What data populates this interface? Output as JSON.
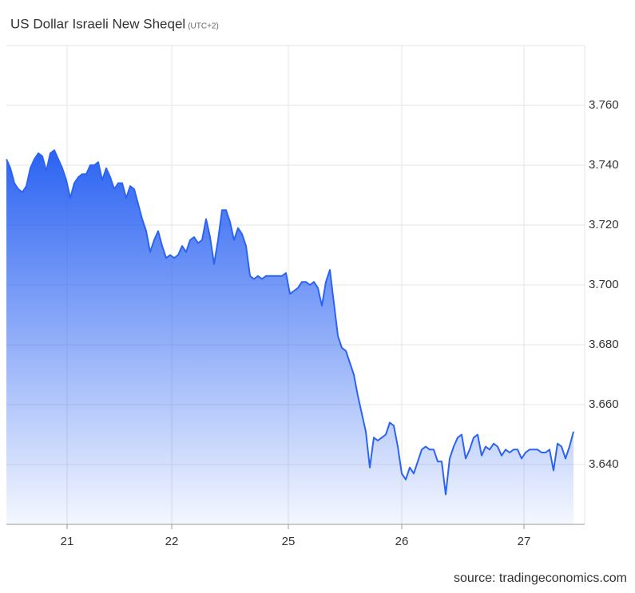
{
  "chart_data": {
    "type": "area",
    "title": "US Dollar Israeli New Sheqel",
    "subtitle": "(UTC+2)",
    "source": "source: tradingeconomics.com",
    "color": "#2b63f2",
    "grid": true,
    "xlim": [
      0,
      144.8
    ],
    "xticks": [
      {
        "value": 15.2,
        "label": "21"
      },
      {
        "value": 41.4,
        "label": "22"
      },
      {
        "value": 70.6,
        "label": "25"
      },
      {
        "value": 99,
        "label": "26"
      },
      {
        "value": 129.6,
        "label": "27"
      }
    ],
    "ylim": [
      3.62,
      3.78
    ],
    "yticks": [
      {
        "value": 3.64,
        "label": "3.640"
      },
      {
        "value": 3.66,
        "label": "3.660"
      },
      {
        "value": 3.68,
        "label": "3.680"
      },
      {
        "value": 3.7,
        "label": "3.700"
      },
      {
        "value": 3.72,
        "label": "3.720"
      },
      {
        "value": 3.74,
        "label": "3.740"
      },
      {
        "value": 3.76,
        "label": "3.760"
      }
    ],
    "x": [
      0,
      1,
      2,
      3,
      4,
      5,
      6,
      7,
      8,
      9,
      10,
      11,
      12,
      13,
      14,
      15,
      16,
      17,
      18,
      19,
      20,
      21,
      22,
      23,
      24,
      25,
      26,
      27,
      28,
      29,
      30,
      31,
      32,
      33,
      34,
      35,
      36,
      37,
      38,
      39,
      40,
      41,
      42,
      43,
      44,
      45,
      46,
      47,
      48,
      49,
      50,
      51,
      52,
      53,
      54,
      55,
      56,
      57,
      58,
      59,
      60,
      61,
      62,
      63,
      64,
      65,
      66,
      67,
      68,
      69,
      70,
      71,
      72,
      73,
      74,
      75,
      76,
      77,
      78,
      79,
      80,
      81,
      82,
      83,
      84,
      85,
      86,
      87,
      88,
      89,
      90,
      91,
      92,
      93,
      94,
      95,
      96,
      97,
      98,
      99,
      100,
      101,
      102,
      103,
      104,
      105,
      106,
      107,
      108,
      109,
      110,
      111,
      112,
      113,
      114,
      115,
      116,
      117,
      118,
      119,
      120,
      121,
      122,
      123,
      124,
      125,
      126,
      127,
      128,
      129,
      130,
      131,
      132,
      133,
      134,
      135,
      136,
      137,
      138,
      139,
      140,
      141,
      142
    ],
    "values": [
      3.742,
      3.739,
      3.734,
      3.732,
      3.731,
      3.733,
      3.739,
      3.742,
      3.744,
      3.743,
      3.738,
      3.744,
      3.745,
      3.742,
      3.739,
      3.735,
      3.729,
      3.734,
      3.736,
      3.737,
      3.737,
      3.74,
      3.74,
      3.741,
      3.735,
      3.739,
      3.736,
      3.732,
      3.734,
      3.734,
      3.729,
      3.733,
      3.732,
      3.727,
      3.722,
      3.718,
      3.711,
      3.715,
      3.718,
      3.713,
      3.709,
      3.71,
      3.709,
      3.71,
      3.713,
      3.711,
      3.715,
      3.716,
      3.714,
      3.715,
      3.722,
      3.716,
      3.707,
      3.715,
      3.725,
      3.725,
      3.721,
      3.715,
      3.719,
      3.717,
      3.713,
      3.703,
      3.702,
      3.703,
      3.702,
      3.703,
      3.703,
      3.703,
      3.703,
      3.703,
      3.704,
      3.697,
      3.698,
      3.699,
      3.701,
      3.701,
      3.7,
      3.701,
      3.699,
      3.693,
      3.701,
      3.705,
      3.694,
      3.683,
      3.679,
      3.678,
      3.674,
      3.67,
      3.663,
      3.657,
      3.651,
      3.639,
      3.649,
      3.648,
      3.649,
      3.65,
      3.654,
      3.653,
      3.646,
      3.637,
      3.635,
      3.639,
      3.637,
      3.641,
      3.645,
      3.646,
      3.645,
      3.645,
      3.641,
      3.641,
      3.63,
      3.642,
      3.646,
      3.649,
      3.65,
      3.642,
      3.645,
      3.649,
      3.65,
      3.643,
      3.646,
      3.645,
      3.647,
      3.646,
      3.643,
      3.645,
      3.644,
      3.645,
      3.645,
      3.642,
      3.644,
      3.645,
      3.645,
      3.645,
      3.644,
      3.644,
      3.645,
      3.638,
      3.647,
      3.646,
      3.642,
      3.646,
      3.651
    ]
  }
}
